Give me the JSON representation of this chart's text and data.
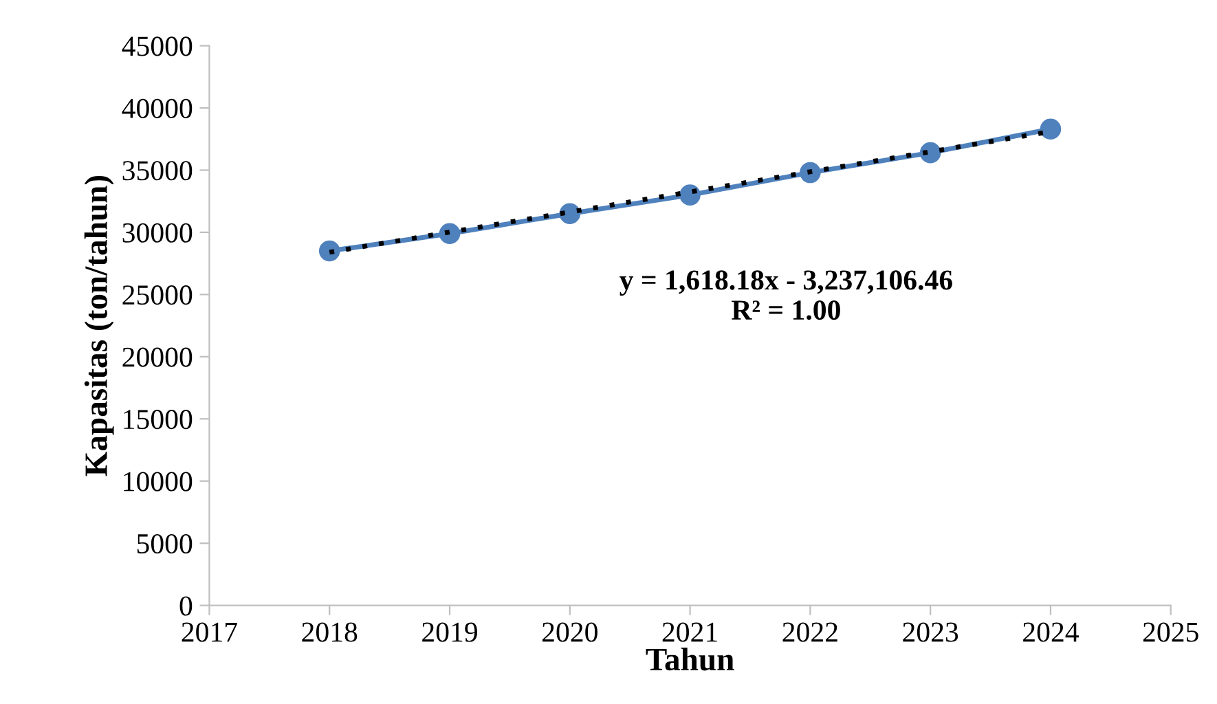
{
  "chart_data": {
    "type": "line",
    "xlabel": "Tahun",
    "ylabel": "Kapasitas (ton/tahun)",
    "xlim": [
      2017,
      2025
    ],
    "xticks": [
      2017,
      2018,
      2019,
      2020,
      2021,
      2022,
      2023,
      2024,
      2025
    ],
    "ylim": [
      0,
      45000
    ],
    "yticks": [
      0,
      5000,
      10000,
      15000,
      20000,
      25000,
      30000,
      35000,
      40000,
      45000
    ],
    "grid": false,
    "series": [
      {
        "x": [
          2018,
          2019,
          2020,
          2021,
          2022,
          2023,
          2024
        ],
        "values": [
          28500,
          29900,
          31500,
          33000,
          34800,
          36400,
          38300
        ],
        "color": "#4f81bd",
        "marker": "circle",
        "line_style": "solid"
      },
      {
        "type": "line",
        "x": [
          2018,
          2024
        ],
        "values": [
          28400,
          38100
        ],
        "color": "#000000",
        "marker": "none",
        "line_style": "dotted"
      }
    ],
    "annotations": [
      "y = 1,618.18x - 3,237,106.46\nR² = 1.00"
    ]
  }
}
